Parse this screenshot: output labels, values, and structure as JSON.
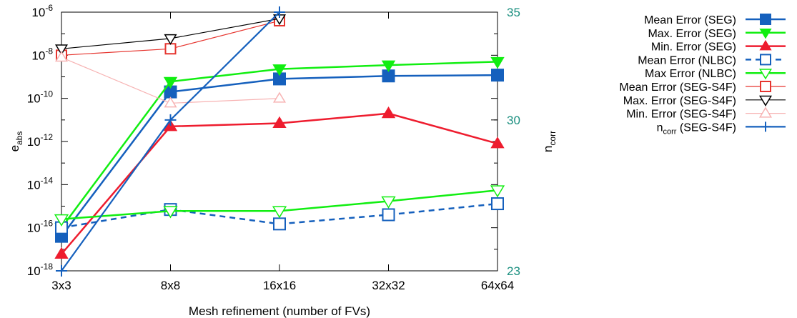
{
  "chart_data": {
    "type": "line",
    "title": "",
    "xlabel": "Mesh refinement (number of FVs)",
    "ylabel_main": "e",
    "ylabel_main_sub": "abs",
    "ylabel_right": "n",
    "ylabel_right_sub": "corr",
    "categories": [
      "3x3",
      "8x8",
      "16x16",
      "32x32",
      "64x64"
    ],
    "y_left": {
      "scale": "log",
      "range_exp": [
        -18,
        -6
      ],
      "ticks": [
        {
          "base": "10",
          "exp": "-18"
        },
        {
          "base": "10",
          "exp": "-16"
        },
        {
          "base": "10",
          "exp": "-14"
        },
        {
          "base": "10",
          "exp": "-12"
        },
        {
          "base": "10",
          "exp": "-10"
        },
        {
          "base": "10",
          "exp": "-8"
        },
        {
          "base": "10",
          "exp": "-6"
        }
      ]
    },
    "y_right": {
      "scale": "linear",
      "range": [
        23,
        35
      ],
      "ticks": [
        "23",
        "30",
        "35"
      ],
      "tick_values": [
        23,
        30,
        35
      ],
      "color": "#1a8f7f"
    },
    "legend_position": "outside-right",
    "series": [
      {
        "name": "Mean Error (SEG)",
        "axis": "left",
        "color": "#1560bd",
        "dash": "solid",
        "marker": "square-filled",
        "width": 2.5,
        "values": [
          4e-17,
          2e-10,
          8e-10,
          1.1e-09,
          1.2e-09
        ]
      },
      {
        "name": "Max. Error (SEG)",
        "axis": "left",
        "color": "#11ee11",
        "dash": "solid",
        "marker": "triangle-down-filled",
        "width": 2.5,
        "values": [
          1e-16,
          6e-10,
          2.3e-09,
          3.5e-09,
          5e-09
        ]
      },
      {
        "name": "Min. Error (SEG)",
        "axis": "left",
        "color": "#ee1c2e",
        "dash": "solid",
        "marker": "triangle-up-filled",
        "width": 2.5,
        "values": [
          6e-18,
          5e-12,
          7e-12,
          2e-11,
          8e-13
        ]
      },
      {
        "name": "Mean Error (NLBC)",
        "axis": "left",
        "color": "#1560bd",
        "dash": "dashed",
        "marker": "square-open",
        "width": 2.5,
        "values": [
          1e-16,
          7e-16,
          1.5e-16,
          4e-16,
          1.3e-15
        ]
      },
      {
        "name": "Max Error (NLBC)",
        "axis": "left",
        "color": "#11ee11",
        "dash": "solid",
        "marker": "triangle-down-open",
        "width": 2.5,
        "values": [
          2.5e-16,
          6e-16,
          6e-16,
          1.7e-15,
          5.5e-15
        ]
      },
      {
        "name": "Mean Error (SEG-S4F)",
        "axis": "left",
        "color": "#e6352f",
        "dash": "solid",
        "marker": "square-open",
        "width": 1.2,
        "values": [
          1e-08,
          2e-08,
          4e-07,
          null,
          null
        ]
      },
      {
        "name": "Max. Error (SEG-S4F)",
        "axis": "left",
        "color": "#000000",
        "dash": "solid",
        "marker": "triangle-down-open",
        "width": 1.2,
        "values": [
          2e-08,
          6e-08,
          5e-07,
          null,
          null
        ]
      },
      {
        "name": "Min. Error (SEG-S4F)",
        "axis": "left",
        "color": "#f7b3b3",
        "dash": "solid",
        "marker": "triangle-up-open",
        "width": 1.2,
        "values": [
          8e-09,
          6e-11,
          1e-10,
          null,
          null
        ]
      },
      {
        "name": "n",
        "name_sub": "corr",
        "name_suffix": " (SEG-S4F)",
        "axis": "right",
        "color": "#1560bd",
        "dash": "solid",
        "marker": "plus",
        "width": 2.2,
        "values": [
          23,
          30,
          35,
          null,
          null
        ]
      }
    ]
  }
}
